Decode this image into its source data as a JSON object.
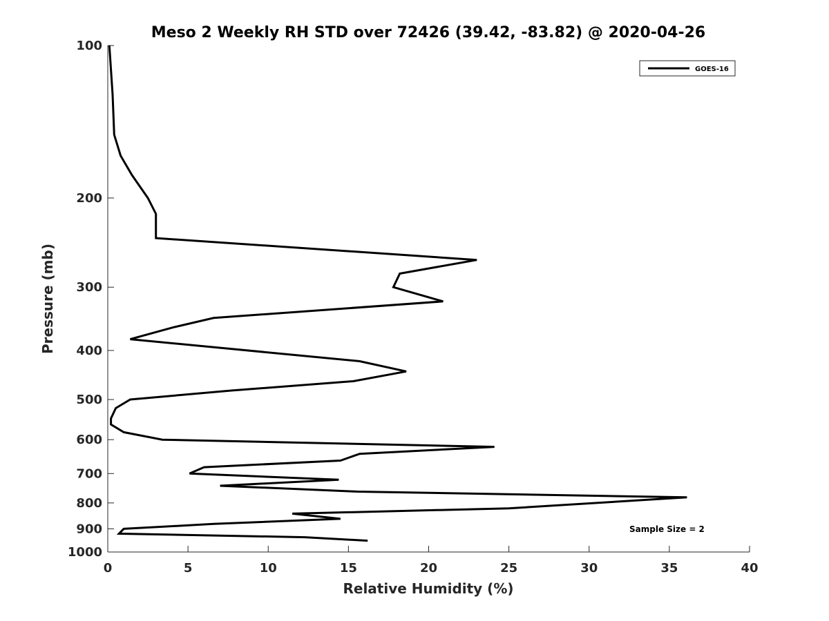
{
  "chart_data": {
    "type": "line",
    "title": "Meso 2 Weekly RH STD over 72426 (39.42, -83.82) @ 2020-04-26",
    "xlabel": "Relative Humidity (%)",
    "ylabel": "Pressure (mb)",
    "xlim": [
      0,
      40
    ],
    "ylim": [
      100,
      1000
    ],
    "y_scale": "log",
    "y_reversed": true,
    "x_ticks": [
      "0",
      "5",
      "10",
      "15",
      "20",
      "25",
      "30",
      "35",
      "40"
    ],
    "y_ticks": [
      "100",
      "200",
      "300",
      "400",
      "500",
      "600",
      "700",
      "800",
      "900",
      "1000"
    ],
    "grid": false,
    "legend_position": "top-right",
    "series": [
      {
        "name": "GOES-16",
        "color": "#000000",
        "points": [
          [
            0.1,
            100
          ],
          [
            0.3,
            125
          ],
          [
            0.4,
            150
          ],
          [
            0.8,
            165
          ],
          [
            1.5,
            180
          ],
          [
            2.5,
            200
          ],
          [
            3.0,
            215
          ],
          [
            3.0,
            240
          ],
          [
            23.0,
            265
          ],
          [
            18.2,
            282
          ],
          [
            17.8,
            300
          ],
          [
            20.9,
            320
          ],
          [
            6.6,
            345
          ],
          [
            4.1,
            360
          ],
          [
            1.4,
            380
          ],
          [
            15.7,
            420
          ],
          [
            18.6,
            440
          ],
          [
            15.3,
            460
          ],
          [
            7.7,
            480
          ],
          [
            1.4,
            500
          ],
          [
            0.5,
            520
          ],
          [
            0.2,
            545
          ],
          [
            0.2,
            560
          ],
          [
            1.0,
            580
          ],
          [
            3.4,
            600
          ],
          [
            24.1,
            620
          ],
          [
            15.7,
            640
          ],
          [
            14.5,
            660
          ],
          [
            6.0,
            680
          ],
          [
            5.1,
            700
          ],
          [
            14.4,
            720
          ],
          [
            7.0,
            740
          ],
          [
            15.6,
            760
          ],
          [
            36.1,
            780
          ],
          [
            25.0,
            820
          ],
          [
            11.5,
            840
          ],
          [
            14.5,
            860
          ],
          [
            6.6,
            880
          ],
          [
            1.0,
            900
          ],
          [
            0.7,
            920
          ],
          [
            12.3,
            935
          ],
          [
            16.2,
            950
          ]
        ]
      }
    ],
    "annotations": [
      "Sample Size = 2"
    ]
  }
}
